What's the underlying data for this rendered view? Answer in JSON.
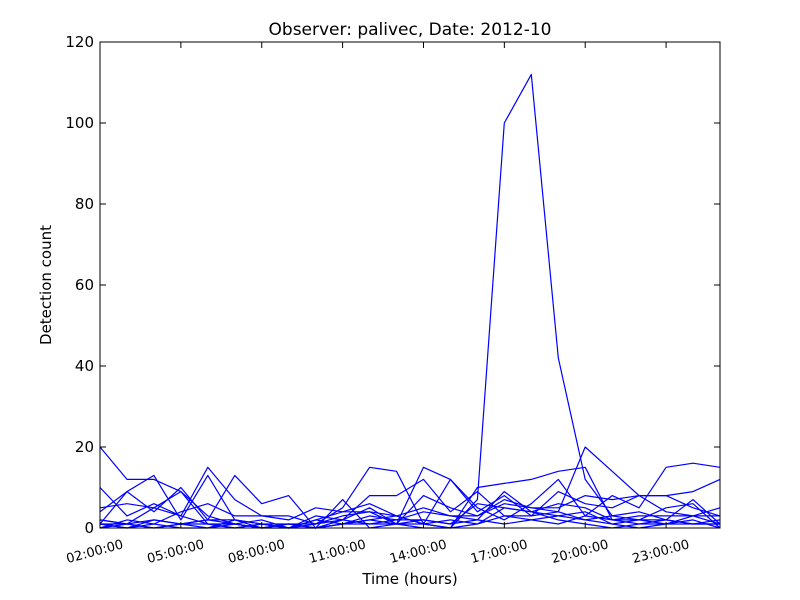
{
  "chart_data": {
    "type": "line",
    "title": "Observer: palivec, Date: 2012-10",
    "xlabel": "Time (hours)",
    "ylabel": "Detection count",
    "x": [
      "02:00:00",
      "03:00:00",
      "04:00:00",
      "05:00:00",
      "06:00:00",
      "07:00:00",
      "08:00:00",
      "09:00:00",
      "10:00:00",
      "11:00:00",
      "12:00:00",
      "13:00:00",
      "14:00:00",
      "15:00:00",
      "16:00:00",
      "17:00:00",
      "18:00:00",
      "19:00:00",
      "20:00:00",
      "21:00:00",
      "22:00:00",
      "23:00:00",
      "00:00:00",
      "01:00:00"
    ],
    "x_tick_labels": [
      "02:00:00",
      "05:00:00",
      "08:00:00",
      "11:00:00",
      "14:00:00",
      "17:00:00",
      "20:00:00",
      "23:00:00"
    ],
    "y_ticks": [
      0,
      20,
      40,
      60,
      80,
      100,
      120
    ],
    "ylim": [
      0,
      120
    ],
    "series": [
      {
        "values": [
          20,
          12,
          12,
          9,
          1,
          1,
          0,
          1,
          0,
          1,
          1,
          1,
          0,
          0,
          10,
          11,
          12,
          14,
          15,
          2,
          3,
          3,
          3,
          3
        ]
      },
      {
        "values": [
          2,
          1,
          2,
          1,
          2,
          1,
          0,
          1,
          0,
          1,
          2,
          1,
          1,
          0,
          7,
          100,
          112,
          42,
          12,
          3,
          2,
          2,
          1,
          1
        ]
      },
      {
        "values": [
          10,
          3,
          6,
          3,
          15,
          7,
          3,
          3,
          1,
          5,
          15,
          14,
          1,
          12,
          5,
          2,
          6,
          12,
          3,
          8,
          5,
          15,
          16,
          15
        ]
      },
      {
        "values": [
          4,
          9,
          4,
          10,
          2,
          13,
          6,
          8,
          0,
          2,
          8,
          8,
          12,
          4,
          9,
          3,
          3,
          4,
          20,
          14,
          8,
          8,
          9,
          12
        ]
      },
      {
        "values": [
          1,
          9,
          13,
          2,
          13,
          2,
          1,
          1,
          0,
          7,
          0,
          1,
          15,
          12,
          4,
          8,
          3,
          9,
          6,
          5,
          8,
          4,
          3,
          1
        ]
      },
      {
        "values": [
          0,
          2,
          1,
          4,
          6,
          3,
          3,
          2,
          5,
          4,
          4,
          3,
          5,
          3,
          3,
          6,
          5,
          5,
          8,
          7,
          8,
          8,
          5,
          3
        ]
      },
      {
        "values": [
          1,
          1,
          5,
          9,
          3,
          1,
          2,
          0,
          3,
          2,
          5,
          1,
          8,
          5,
          3,
          7,
          5,
          4,
          2,
          3,
          4,
          2,
          7,
          1
        ]
      },
      {
        "values": [
          5,
          6,
          5,
          3,
          1,
          0,
          1,
          0,
          2,
          1,
          3,
          2,
          2,
          1,
          6,
          5,
          4,
          2,
          1,
          0,
          1,
          1,
          2,
          0
        ]
      },
      {
        "values": [
          1,
          0,
          1,
          0,
          0,
          1,
          0,
          0,
          1,
          2,
          1,
          2,
          4,
          3,
          2,
          9,
          4,
          3,
          2,
          1,
          2,
          1,
          3,
          5
        ]
      },
      {
        "values": [
          0,
          1,
          0,
          1,
          2,
          2,
          0,
          1,
          1,
          3,
          4,
          1,
          2,
          1,
          2,
          1,
          2,
          3,
          4,
          1,
          0,
          1,
          1,
          2
        ]
      },
      {
        "values": [
          2,
          1,
          0,
          1,
          1,
          0,
          1,
          0,
          2,
          4,
          6,
          3,
          1,
          2,
          1,
          5,
          4,
          6,
          5,
          2,
          2,
          5,
          6,
          0
        ]
      },
      {
        "values": [
          1,
          0,
          2,
          1,
          0,
          2,
          1,
          0,
          0,
          1,
          2,
          3,
          1,
          0,
          1,
          3,
          2,
          1,
          3,
          2,
          1,
          2,
          1,
          1
        ]
      }
    ]
  }
}
